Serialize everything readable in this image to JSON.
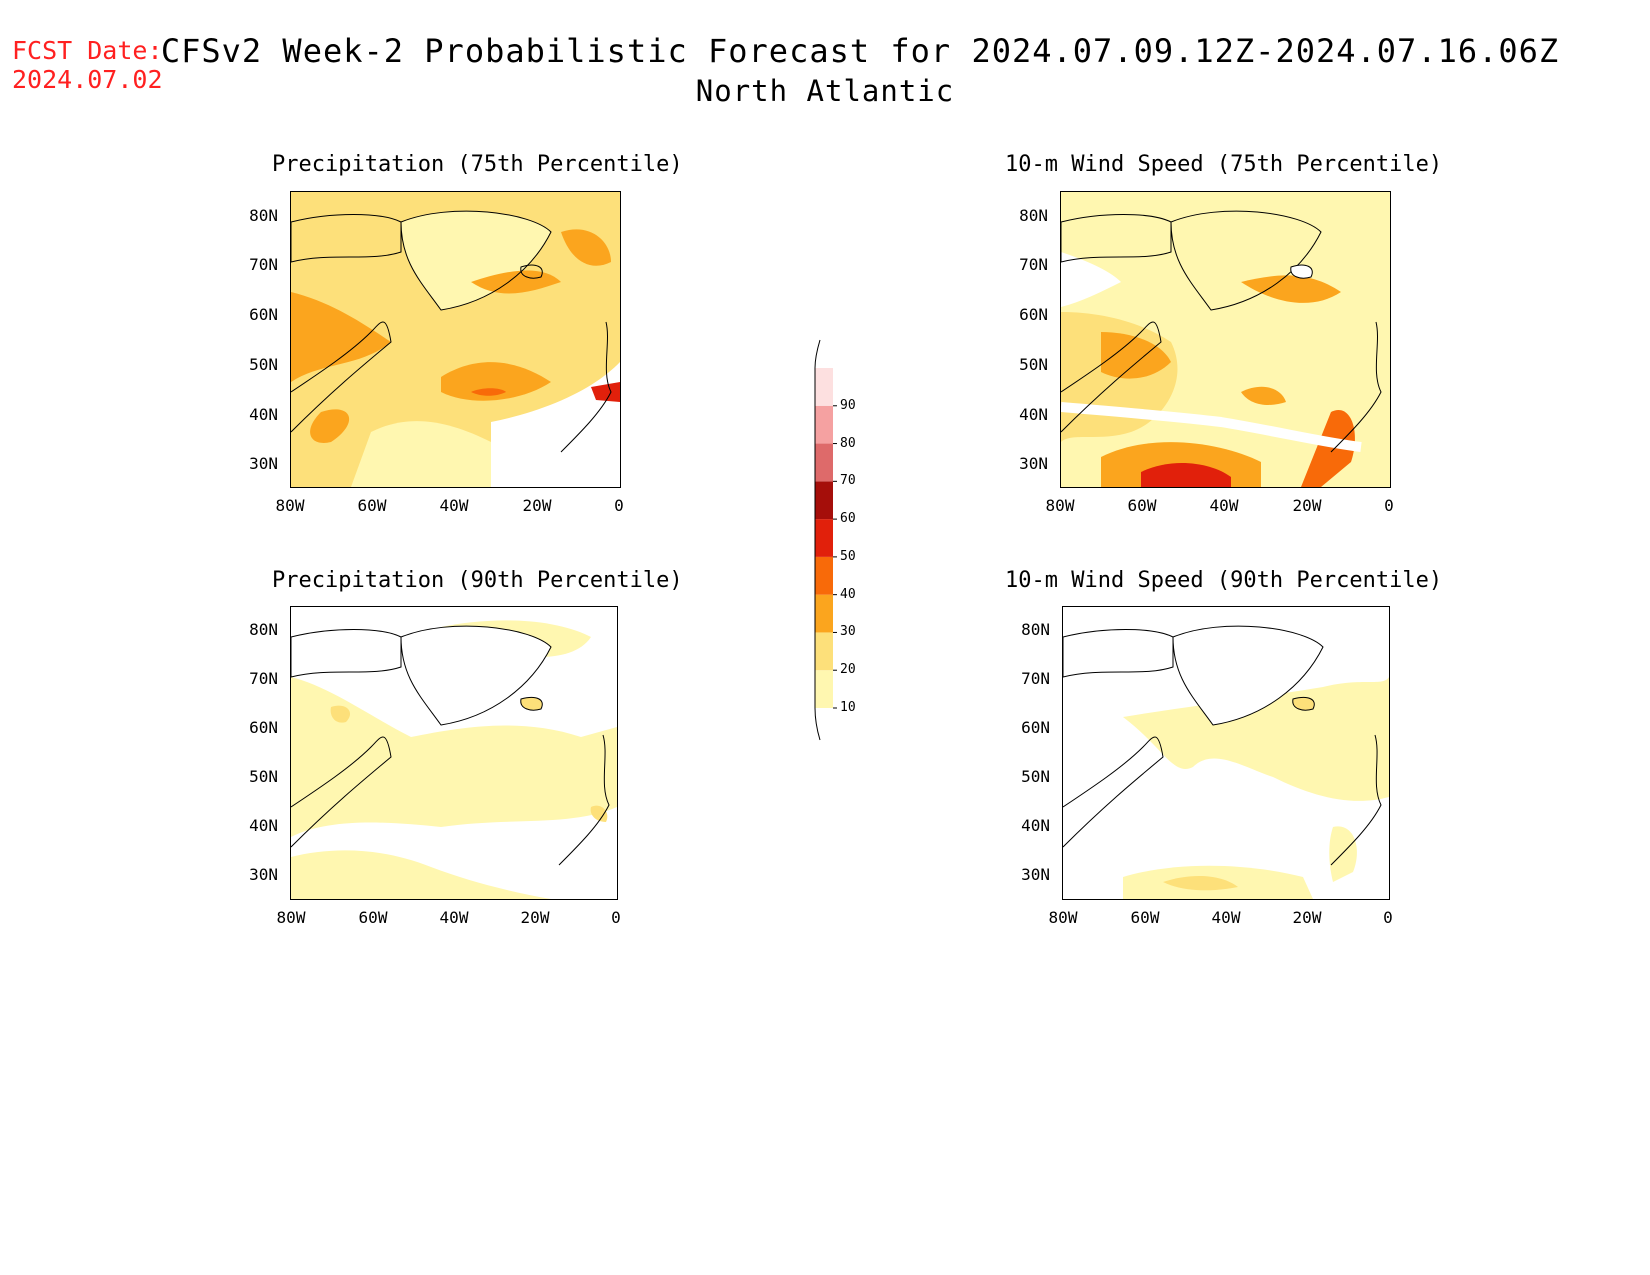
{
  "header": {
    "fcst_label": "FCST Date:",
    "fcst_date": "2024.07.02",
    "title": "CFSv2 Week-2 Probabilistic Forecast for 2024.07.09.12Z-2024.07.16.06Z",
    "subtitle": "North Atlantic"
  },
  "axes": {
    "lat_labels": [
      "80N",
      "70N",
      "60N",
      "50N",
      "40N",
      "30N"
    ],
    "lon_labels": [
      "80W",
      "60W",
      "40W",
      "20W",
      "0"
    ]
  },
  "panels": [
    {
      "title": "Precipitation (75th Percentile)"
    },
    {
      "title": "10-m Wind Speed (75th Percentile)"
    },
    {
      "title": "Precipitation (90th Percentile)"
    },
    {
      "title": "10-m Wind Speed (90th Percentile)"
    }
  ],
  "colorbar": {
    "levels": [
      "10",
      "20",
      "30",
      "40",
      "50",
      "60",
      "70",
      "80",
      "90"
    ],
    "colors": [
      "#fff7b0",
      "#fde07a",
      "#fba51e",
      "#f86a09",
      "#e1200b",
      "#a50e0a",
      "#de6a6a",
      "#f5a1a1",
      "#fde0e0"
    ]
  }
}
